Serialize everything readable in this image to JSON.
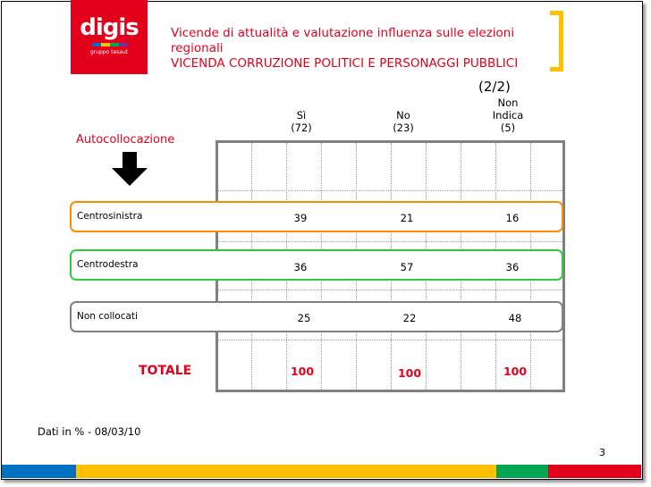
{
  "logo": {
    "text": "digis",
    "subtext": "gruppo tesaut",
    "bar_colors": [
      "#0070c0",
      "#ffc000",
      "#00a651",
      "#7030a0"
    ]
  },
  "title": {
    "line1": "Vicende di attualità e valutazione influenza sulle elezioni",
    "line2": "regionali",
    "line3": "VICENDA CORRUZIONE POLITICI E PERSONAGGI PUBBLICI"
  },
  "page_fraction": "(2/2)",
  "columns": [
    {
      "label": "Sì",
      "sub": "",
      "n": "(72)"
    },
    {
      "label": "No",
      "sub": "",
      "n": "(23)"
    },
    {
      "label": "Non",
      "sub": "Indica",
      "n": "(5)"
    }
  ],
  "side_label": "Autocollocazione",
  "rows": [
    {
      "label": "Centrosinistra",
      "values": [
        "39",
        "21",
        "16"
      ],
      "color": "#ff8c00"
    },
    {
      "label": "Centrodestra",
      "values": [
        "36",
        "57",
        "36"
      ],
      "color": "#2ecc40"
    },
    {
      "label": "Non collocati",
      "values": [
        "25",
        "22",
        "48"
      ],
      "color": "#7f7f7f"
    }
  ],
  "total": {
    "label": "TOTALE",
    "values": [
      "100",
      "100",
      "100"
    ]
  },
  "footer": "Dati in % - 08/03/10",
  "page_number": "3",
  "colors": {
    "accent_red": "#e3001b",
    "bracket_yellow": "#ffc000",
    "strip": [
      "#0070c0",
      "#ffc000",
      "#00a651",
      "#e3001b"
    ]
  }
}
